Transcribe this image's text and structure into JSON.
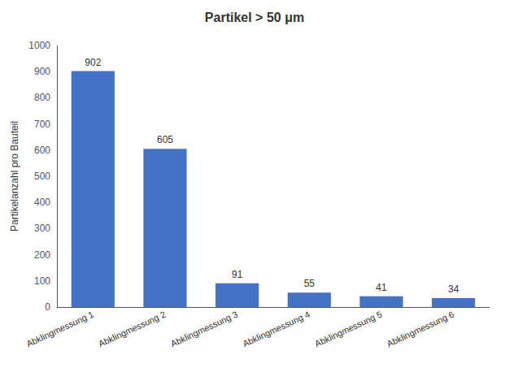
{
  "chart_data": {
    "type": "bar",
    "title": "Partikel > 50 μm",
    "ylabel": "Partikelanzahl pro Bauteil",
    "categories": [
      "Abklingmessung 1",
      "Abklingmessung 2",
      "Abklingmessung 3",
      "Abklingmessung 4",
      "Abklingmessung 5",
      "Abklingmessung 6"
    ],
    "values": [
      902,
      605,
      91,
      55,
      41,
      34
    ],
    "color": "#4472C4",
    "ylim": [
      0,
      1000
    ],
    "yticks": [
      0,
      100,
      200,
      300,
      400,
      500,
      600,
      700,
      800,
      900,
      1000
    ],
    "grid": false,
    "data_labels": true
  }
}
